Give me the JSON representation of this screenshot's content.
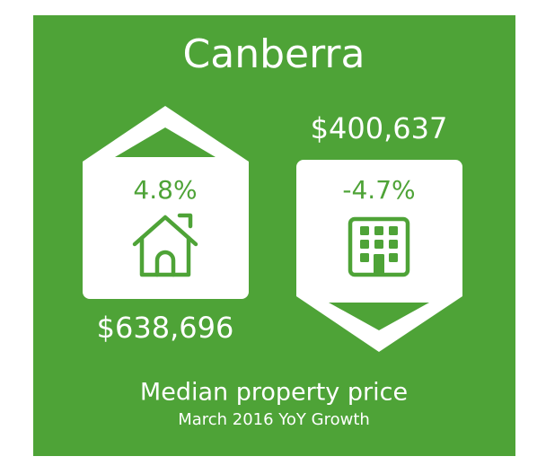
{
  "title": "Canberra",
  "houses": {
    "growth": "4.8%",
    "price": "$638,696"
  },
  "units": {
    "price": "$400,637",
    "growth": "-4.7%"
  },
  "footer": {
    "heading": "Median property price",
    "subheading": "March 2016 YoY Growth"
  }
}
